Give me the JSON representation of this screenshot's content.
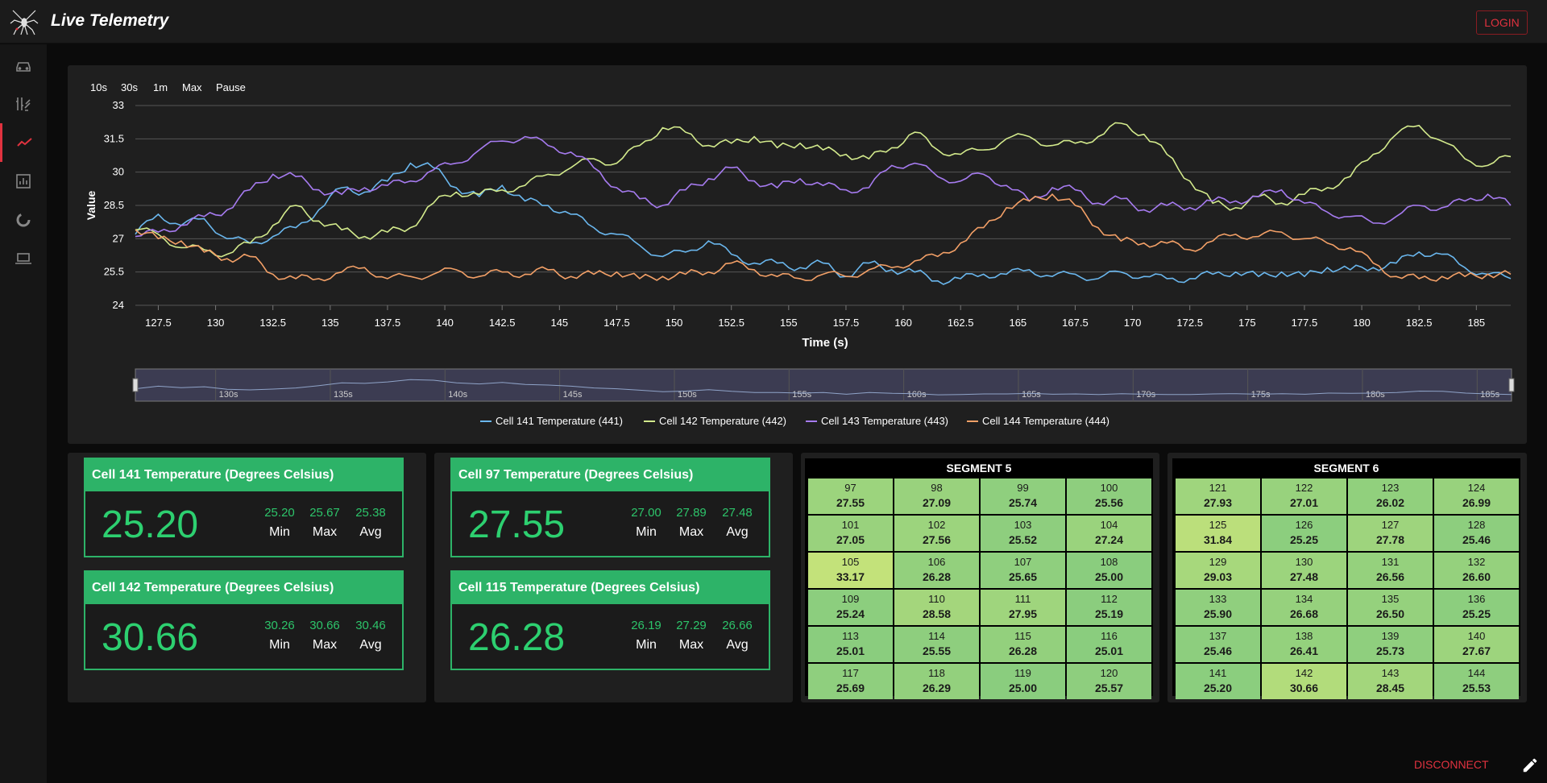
{
  "app": {
    "title": "Live Telemetry",
    "login_label": "LOGIN",
    "disconnect_label": "DISCONNECT"
  },
  "nav": [
    "car-icon",
    "tune-icon",
    "chart-line-icon",
    "bar-chart-icon",
    "donut-icon",
    "laptop-icon"
  ],
  "range_buttons": [
    "10s",
    "30s",
    "1m",
    "Max",
    "Pause"
  ],
  "chart_data": {
    "type": "line",
    "xlabel": "Time (s)",
    "ylabel": "Value",
    "ylim": [
      24,
      33
    ],
    "xlim": [
      126.5,
      186.5
    ],
    "yticks": [
      "24",
      "25.5",
      "27",
      "28.5",
      "30",
      "31.5",
      "33"
    ],
    "xticks": [
      "127.5",
      "130",
      "132.5",
      "135",
      "137.5",
      "140",
      "142.5",
      "145",
      "147.5",
      "150",
      "152.5",
      "155",
      "157.5",
      "160",
      "162.5",
      "165",
      "167.5",
      "170",
      "172.5",
      "175",
      "177.5",
      "180",
      "182.5",
      "185"
    ],
    "navigator_ticks": [
      "130s",
      "135s",
      "140s",
      "145s",
      "150s",
      "155s",
      "160s",
      "165s",
      "170s",
      "175s",
      "180s",
      "185s"
    ],
    "series": [
      {
        "name": "Cell 141 Temperature (441)",
        "color": "#6ab7ee",
        "x": [
          126.5,
          127.5,
          128.5,
          129.5,
          130.5,
          131.5,
          132.5,
          133.5,
          134.5,
          135.5,
          136.5,
          137.5,
          138.5,
          139.5,
          140.5,
          141.5,
          142.5,
          143.5,
          144.5,
          145.5,
          146.5,
          147.5,
          148.5,
          149.5,
          150.5,
          151.5,
          152.5,
          153.5,
          154.5,
          155.5,
          156.5,
          157.5,
          158.5,
          159.5,
          160.5,
          161.5,
          162.5,
          163.5,
          164.5,
          165.5,
          166.5,
          167.5,
          168.5,
          169.5,
          170.5,
          171.5,
          172.5,
          173.5,
          174.5,
          175.5,
          176.5,
          177.5,
          178.5,
          179.5,
          180.5,
          181.5,
          182.5,
          183.5,
          184.5,
          185.5,
          186.5
        ],
        "y": [
          27.2,
          28.1,
          27.6,
          27.9,
          27.0,
          26.8,
          27.1,
          27.5,
          28.3,
          29.3,
          29.1,
          29.6,
          30.4,
          30.2,
          29.3,
          28.9,
          29.4,
          28.7,
          28.5,
          28.1,
          27.5,
          27.2,
          26.7,
          26.2,
          26.4,
          26.9,
          26.3,
          25.9,
          25.9,
          25.7,
          25.9,
          25.3,
          25.9,
          25.6,
          25.5,
          25.1,
          25.2,
          25.4,
          25.4,
          25.6,
          25.3,
          25.4,
          25.2,
          25.5,
          25.3,
          25.2,
          25.2,
          25.4,
          25.5,
          25.3,
          25.5,
          25.3,
          25.7,
          25.6,
          25.7,
          25.9,
          26.4,
          26.3,
          25.7,
          25.4,
          25.2
        ]
      },
      {
        "name": "Cell 142 Temperature (442)",
        "color": "#d3ea8c",
        "x": [
          126.5,
          127.5,
          128.5,
          129.5,
          130.5,
          131.5,
          132.5,
          133.5,
          134.5,
          135.5,
          136.5,
          137.5,
          138.5,
          139.5,
          140.5,
          141.5,
          142.5,
          143.5,
          144.5,
          145.5,
          146.5,
          147.5,
          148.5,
          149.5,
          150.5,
          151.5,
          152.5,
          153.5,
          154.5,
          155.5,
          156.5,
          157.5,
          158.5,
          159.5,
          160.5,
          161.5,
          162.5,
          163.5,
          164.5,
          165.5,
          166.5,
          167.5,
          168.5,
          169.5,
          170.5,
          171.5,
          172.5,
          173.5,
          174.5,
          175.5,
          176.5,
          177.5,
          178.5,
          179.5,
          180.5,
          181.5,
          182.5,
          183.5,
          184.5,
          185.5,
          186.5
        ],
        "y": [
          27.4,
          27.2,
          26.6,
          26.5,
          26.3,
          26.8,
          27.6,
          28.5,
          27.8,
          27.4,
          27.1,
          27.3,
          27.5,
          28.6,
          29.1,
          29.0,
          29.2,
          29.4,
          29.9,
          30.2,
          30.6,
          30.4,
          31.2,
          32.0,
          31.8,
          31.2,
          31.3,
          31.6,
          31.1,
          31.3,
          31.0,
          30.8,
          30.6,
          31.1,
          31.8,
          31.0,
          30.8,
          31.0,
          31.5,
          31.6,
          31.2,
          31.3,
          31.6,
          32.2,
          31.7,
          30.8,
          29.6,
          28.6,
          28.4,
          28.9,
          28.6,
          29.0,
          29.3,
          29.8,
          30.8,
          31.7,
          32.1,
          31.4,
          30.6,
          30.3,
          30.7
        ]
      },
      {
        "name": "Cell 143 Temperature (443)",
        "color": "#a67bf0",
        "x": [
          126.5,
          127.5,
          128.5,
          129.5,
          130.5,
          131.5,
          132.5,
          133.5,
          134.5,
          135.5,
          136.5,
          137.5,
          138.5,
          139.5,
          140.5,
          141.5,
          142.5,
          143.5,
          144.5,
          145.5,
          146.5,
          147.5,
          148.5,
          149.5,
          150.5,
          151.5,
          152.5,
          153.5,
          154.5,
          155.5,
          156.5,
          157.5,
          158.5,
          159.5,
          160.5,
          161.5,
          162.5,
          163.5,
          164.5,
          165.5,
          166.5,
          167.5,
          168.5,
          169.5,
          170.5,
          171.5,
          172.5,
          173.5,
          174.5,
          175.5,
          176.5,
          177.5,
          178.5,
          179.5,
          180.5,
          181.5,
          182.5,
          183.5,
          184.5,
          185.5,
          186.5
        ],
        "y": [
          27.1,
          27.3,
          27.6,
          28.0,
          28.3,
          29.2,
          29.9,
          29.8,
          29.2,
          29.0,
          29.3,
          29.4,
          29.6,
          30.1,
          30.4,
          31.0,
          31.4,
          31.6,
          31.2,
          30.9,
          30.2,
          29.3,
          28.8,
          28.5,
          29.2,
          29.7,
          30.2,
          29.6,
          29.3,
          29.7,
          29.4,
          29.2,
          29.3,
          30.3,
          30.4,
          29.8,
          29.6,
          29.9,
          29.4,
          28.7,
          29.3,
          29.2,
          28.6,
          28.8,
          28.3,
          28.5,
          28.4,
          28.7,
          28.7,
          28.9,
          29.2,
          28.6,
          28.2,
          28.0,
          27.7,
          28.0,
          28.5,
          28.4,
          28.7,
          29.0,
          28.5
        ]
      },
      {
        "name": "Cell 144 Temperature (444)",
        "color": "#f3a067",
        "x": [
          126.5,
          127.5,
          128.5,
          129.5,
          130.5,
          131.5,
          132.5,
          133.5,
          134.5,
          135.5,
          136.5,
          137.5,
          138.5,
          139.5,
          140.5,
          141.5,
          142.5,
          143.5,
          144.5,
          145.5,
          146.5,
          147.5,
          148.5,
          149.5,
          150.5,
          151.5,
          152.5,
          153.5,
          154.5,
          155.5,
          156.5,
          157.5,
          158.5,
          159.5,
          160.5,
          161.5,
          162.5,
          163.5,
          164.5,
          165.5,
          166.5,
          167.5,
          168.5,
          169.5,
          170.5,
          171.5,
          172.5,
          173.5,
          174.5,
          175.5,
          176.5,
          177.5,
          178.5,
          179.5,
          180.5,
          181.5,
          182.5,
          183.5,
          184.5,
          185.5,
          186.5
        ],
        "y": [
          27.4,
          27.0,
          26.9,
          26.4,
          26.1,
          26.2,
          25.4,
          25.2,
          25.2,
          25.5,
          25.7,
          25.2,
          25.3,
          25.4,
          25.6,
          25.3,
          25.5,
          25.4,
          25.6,
          25.3,
          25.4,
          25.5,
          25.2,
          25.3,
          25.4,
          25.5,
          25.9,
          25.6,
          25.3,
          25.2,
          25.4,
          25.3,
          25.6,
          25.7,
          26.0,
          26.2,
          26.8,
          27.5,
          28.4,
          28.7,
          29.0,
          28.5,
          27.5,
          26.9,
          26.8,
          26.8,
          26.5,
          26.9,
          27.2,
          27.1,
          27.3,
          27.0,
          26.8,
          26.6,
          25.9,
          25.3,
          25.2,
          25.3,
          25.3,
          25.4,
          25.4
        ]
      }
    ]
  },
  "stat_cards": [
    {
      "title": "Cell 141 Temperature (Degrees Celsius)",
      "value": "25.20",
      "min": "25.20",
      "max": "25.67",
      "avg": "25.38",
      "min_label": "Min",
      "max_label": "Max",
      "avg_label": "Avg"
    },
    {
      "title": "Cell 142 Temperature (Degrees Celsius)",
      "value": "30.66",
      "min": "30.26",
      "max": "30.66",
      "avg": "30.46",
      "min_label": "Min",
      "max_label": "Max",
      "avg_label": "Avg"
    },
    {
      "title": "Cell 97 Temperature (Degrees Celsius)",
      "value": "27.55",
      "min": "27.00",
      "max": "27.89",
      "avg": "27.48",
      "min_label": "Min",
      "max_label": "Max",
      "avg_label": "Avg"
    },
    {
      "title": "Cell 115 Temperature (Degrees Celsius)",
      "value": "26.28",
      "min": "26.19",
      "max": "27.29",
      "avg": "26.66",
      "min_label": "Min",
      "max_label": "Max",
      "avg_label": "Avg"
    }
  ],
  "segments": [
    {
      "title": "SEGMENT 5",
      "cells": [
        {
          "id": "97",
          "t": "27.55"
        },
        {
          "id": "98",
          "t": "27.09"
        },
        {
          "id": "99",
          "t": "25.74"
        },
        {
          "id": "100",
          "t": "25.56"
        },
        {
          "id": "101",
          "t": "27.05"
        },
        {
          "id": "102",
          "t": "27.56"
        },
        {
          "id": "103",
          "t": "25.52"
        },
        {
          "id": "104",
          "t": "27.24"
        },
        {
          "id": "105",
          "t": "33.17"
        },
        {
          "id": "106",
          "t": "26.28"
        },
        {
          "id": "107",
          "t": "25.65"
        },
        {
          "id": "108",
          "t": "25.00"
        },
        {
          "id": "109",
          "t": "25.24"
        },
        {
          "id": "110",
          "t": "28.58"
        },
        {
          "id": "111",
          "t": "27.95"
        },
        {
          "id": "112",
          "t": "25.19"
        },
        {
          "id": "113",
          "t": "25.01"
        },
        {
          "id": "114",
          "t": "25.55"
        },
        {
          "id": "115",
          "t": "26.28"
        },
        {
          "id": "116",
          "t": "25.01"
        },
        {
          "id": "117",
          "t": "25.69"
        },
        {
          "id": "118",
          "t": "26.29"
        },
        {
          "id": "119",
          "t": "25.00"
        },
        {
          "id": "120",
          "t": "25.57"
        }
      ]
    },
    {
      "title": "SEGMENT 6",
      "cells": [
        {
          "id": "121",
          "t": "27.93"
        },
        {
          "id": "122",
          "t": "27.01"
        },
        {
          "id": "123",
          "t": "26.02"
        },
        {
          "id": "124",
          "t": "26.99"
        },
        {
          "id": "125",
          "t": "31.84"
        },
        {
          "id": "126",
          "t": "25.25"
        },
        {
          "id": "127",
          "t": "27.78"
        },
        {
          "id": "128",
          "t": "25.46"
        },
        {
          "id": "129",
          "t": "29.03"
        },
        {
          "id": "130",
          "t": "27.48"
        },
        {
          "id": "131",
          "t": "26.56"
        },
        {
          "id": "132",
          "t": "26.60"
        },
        {
          "id": "133",
          "t": "25.90"
        },
        {
          "id": "134",
          "t": "26.68"
        },
        {
          "id": "135",
          "t": "26.50"
        },
        {
          "id": "136",
          "t": "25.25"
        },
        {
          "id": "137",
          "t": "25.46"
        },
        {
          "id": "138",
          "t": "26.41"
        },
        {
          "id": "139",
          "t": "25.73"
        },
        {
          "id": "140",
          "t": "27.67"
        },
        {
          "id": "141",
          "t": "25.20"
        },
        {
          "id": "142",
          "t": "30.66"
        },
        {
          "id": "143",
          "t": "28.45"
        },
        {
          "id": "144",
          "t": "25.53"
        }
      ]
    }
  ]
}
